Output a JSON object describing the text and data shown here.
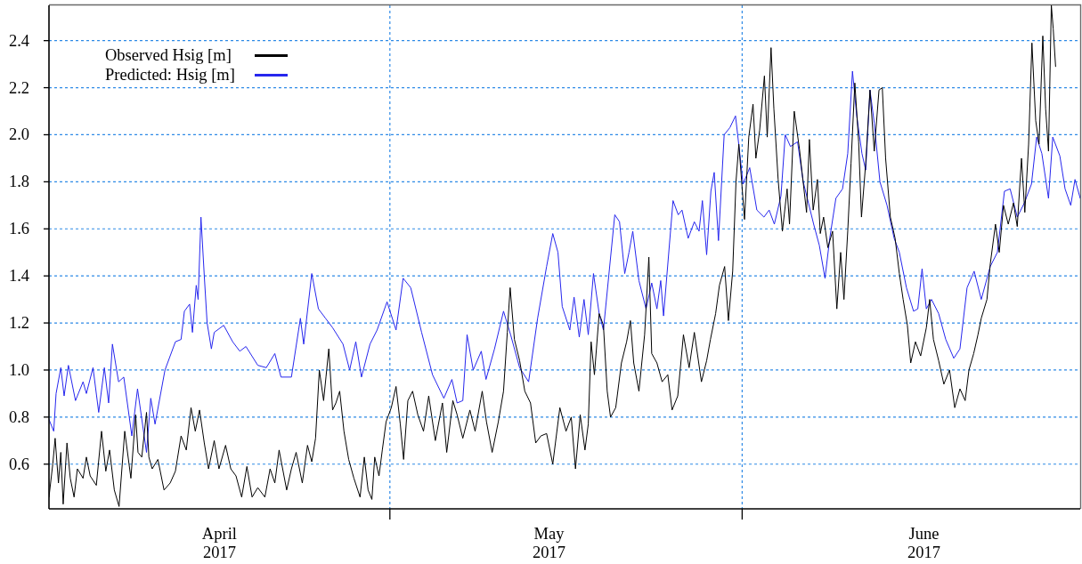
{
  "chart_data": {
    "type": "line",
    "series": [
      {
        "name": "Observed Hsig [m]",
        "color": "#000000",
        "x": [
          "2017-04-01T00:00",
          "2017-04-01T08:00",
          "2017-04-01T13:00",
          "2017-04-01T20:00",
          "2017-04-02T01:00",
          "2017-04-02T06:00",
          "2017-04-02T14:00",
          "2017-04-02T21:00",
          "2017-04-03T05:00",
          "2017-04-03T12:00",
          "2017-04-04T00:00",
          "2017-04-04T07:00",
          "2017-04-04T15:00",
          "2017-04-05T04:00",
          "2017-04-05T15:00",
          "2017-04-06T00:00",
          "2017-04-06T08:00",
          "2017-04-06T18:00",
          "2017-04-07T04:00",
          "2017-04-07T16:00",
          "2017-04-08T05:00",
          "2017-04-08T15:00",
          "2017-04-08T20:00",
          "2017-04-09T04:00",
          "2017-04-09T14:00",
          "2017-04-09T19:00",
          "2017-04-10T02:00",
          "2017-04-10T14:00",
          "2017-04-11T03:00",
          "2017-04-11T16:00",
          "2017-04-12T03:00",
          "2017-04-12T15:00",
          "2017-04-13T02:00",
          "2017-04-13T12:00",
          "2017-04-13T21:00",
          "2017-04-14T06:00",
          "2017-04-14T16:00",
          "2017-04-15T01:00",
          "2017-04-15T13:00",
          "2017-04-15T23:00",
          "2017-04-16T13:00",
          "2017-04-17T00:00",
          "2017-04-17T11:00",
          "2017-04-17T23:00",
          "2017-04-18T10:00",
          "2017-04-18T21:00",
          "2017-04-19T09:00",
          "2017-04-20T00:00",
          "2017-04-20T11:00",
          "2017-04-20T21:00",
          "2017-04-21T06:00",
          "2017-04-21T22:00",
          "2017-04-22T08:00",
          "2017-04-22T18:00",
          "2017-04-23T07:00",
          "2017-04-23T18:00",
          "2017-04-24T03:00",
          "2017-04-24T11:00",
          "2017-04-24T19:00",
          "2017-04-25T04:00",
          "2017-04-25T09:00",
          "2017-04-25T15:00",
          "2017-04-25T23:00",
          "2017-04-26T06:00",
          "2017-04-26T14:00",
          "2017-04-26T23:00",
          "2017-04-27T09:00",
          "2017-04-27T20:00",
          "2017-04-28T09:00",
          "2017-04-28T18:00",
          "2017-04-29T02:00",
          "2017-04-29T10:00",
          "2017-04-29T16:00",
          "2017-04-30T01:00",
          "2017-04-30T08:00",
          "2017-04-30T16:00",
          "2017-05-01T03:00",
          "2017-05-01T13:00",
          "2017-05-01T22:00",
          "2017-05-02T05:00",
          "2017-05-02T14:00",
          "2017-05-03T00:00",
          "2017-05-03T11:00",
          "2017-05-03T23:00",
          "2017-05-04T10:00",
          "2017-05-05T00:00",
          "2017-05-05T15:00",
          "2017-05-06T00:00",
          "2017-05-06T13:00",
          "2017-05-06T22:00",
          "2017-05-07T10:00",
          "2017-05-08T01:00",
          "2017-05-08T12:00",
          "2017-05-09T03:00",
          "2017-05-09T12:00",
          "2017-05-10T00:00",
          "2017-05-10T13:00",
          "2017-05-11T00:00",
          "2017-05-11T08:00",
          "2017-05-11T14:00",
          "2017-05-11T23:00",
          "2017-05-12T10:00",
          "2017-05-12T21:00",
          "2017-05-13T09:00",
          "2017-05-13T20:00",
          "2017-05-14T07:00",
          "2017-05-14T19:00",
          "2017-05-15T08:00",
          "2017-05-15T23:00",
          "2017-05-16T12:00",
          "2017-05-16T23:00",
          "2017-05-17T08:00",
          "2017-05-17T18:00",
          "2017-05-18T04:00",
          "2017-05-18T11:00",
          "2017-05-18T17:00",
          "2017-05-19T00:00",
          "2017-05-19T10:00",
          "2017-05-19T19:00",
          "2017-05-20T03:00",
          "2017-05-20T10:00",
          "2017-05-20T21:00",
          "2017-05-21T09:00",
          "2017-05-21T20:00",
          "2017-05-22T04:00",
          "2017-05-22T11:00",
          "2017-05-22T22:00",
          "2017-05-23T10:00",
          "2017-05-23T19:00",
          "2017-05-24T01:00",
          "2017-05-24T12:00",
          "2017-05-24T23:00",
          "2017-05-25T11:00",
          "2017-05-25T20:00",
          "2017-05-26T08:00",
          "2017-05-26T20:00",
          "2017-05-27T08:00",
          "2017-05-27T19:00",
          "2017-05-28T10:00",
          "2017-05-28T21:00",
          "2017-05-29T05:00",
          "2017-05-29T16:00",
          "2017-05-30T00:00",
          "2017-05-30T11:00",
          "2017-05-30T19:00",
          "2017-05-31T04:00",
          "2017-05-31T11:00",
          "2017-05-31T17:00",
          "2017-06-01T05:00",
          "2017-06-01T14:00",
          "2017-06-01T23:00",
          "2017-06-02T05:00",
          "2017-06-02T13:00",
          "2017-06-02T23:00",
          "2017-06-03T05:00",
          "2017-06-03T13:00",
          "2017-06-03T19:00",
          "2017-06-04T04:00",
          "2017-06-04T13:00",
          "2017-06-04T23:00",
          "2017-06-05T04:00",
          "2017-06-05T14:00",
          "2017-06-06T01:00",
          "2017-06-06T16:00",
          "2017-06-06T22:00",
          "2017-06-07T06:00",
          "2017-06-07T15:00",
          "2017-06-07T21:00",
          "2017-06-08T04:00",
          "2017-06-08T13:00",
          "2017-06-08T23:00",
          "2017-06-09T08:00",
          "2017-06-09T16:00",
          "2017-06-09T23:00",
          "2017-06-10T07:00",
          "2017-06-10T14:00",
          "2017-06-10T22:00",
          "2017-06-11T06:00",
          "2017-06-11T12:00",
          "2017-06-11T21:00",
          "2017-06-12T06:00",
          "2017-06-12T15:00",
          "2017-06-13T01:00",
          "2017-06-13T08:00",
          "2017-06-13T15:00",
          "2017-06-14T01:00",
          "2017-06-14T11:00",
          "2017-06-14T20:00",
          "2017-06-15T04:00",
          "2017-06-15T13:00",
          "2017-06-15T20:00",
          "2017-06-16T06:00",
          "2017-06-16T17:00",
          "2017-06-17T05:00",
          "2017-06-17T12:00",
          "2017-06-17T20:00",
          "2017-06-18T07:00",
          "2017-06-18T18:00",
          "2017-06-19T06:00",
          "2017-06-19T17:00",
          "2017-06-20T04:00",
          "2017-06-20T15:00",
          "2017-06-20T23:00",
          "2017-06-21T09:00",
          "2017-06-21T18:00",
          "2017-06-22T01:00",
          "2017-06-22T13:00",
          "2017-06-22T20:00",
          "2017-06-23T07:00",
          "2017-06-23T15:00",
          "2017-06-24T00:00",
          "2017-06-24T10:00",
          "2017-06-24T21:00",
          "2017-06-25T05:00",
          "2017-06-25T14:00",
          "2017-06-25T21:00",
          "2017-06-26T05:00",
          "2017-06-26T12:00",
          "2017-06-26T20:00",
          "2017-06-27T03:00",
          "2017-06-27T11:00",
          "2017-06-27T17:00",
          "2017-06-27T23:00",
          "2017-06-28T05:00",
          "2017-06-28T09:00",
          "2017-06-28T14:00"
        ],
        "values": [
          0.46,
          0.6,
          0.71,
          0.52,
          0.65,
          0.43,
          0.69,
          0.54,
          0.46,
          0.58,
          0.54,
          0.63,
          0.55,
          0.51,
          0.74,
          0.57,
          0.66,
          0.49,
          0.42,
          0.74,
          0.54,
          0.81,
          0.65,
          0.63,
          0.82,
          0.63,
          0.58,
          0.62,
          0.49,
          0.52,
          0.57,
          0.72,
          0.66,
          0.84,
          0.74,
          0.83,
          0.69,
          0.58,
          0.7,
          0.58,
          0.68,
          0.58,
          0.55,
          0.46,
          0.59,
          0.46,
          0.5,
          0.46,
          0.58,
          0.52,
          0.66,
          0.49,
          0.58,
          0.65,
          0.52,
          0.68,
          0.61,
          0.71,
          1.0,
          0.87,
          0.97,
          1.09,
          0.83,
          0.86,
          0.91,
          0.74,
          0.62,
          0.54,
          0.46,
          0.63,
          0.49,
          0.45,
          0.63,
          0.55,
          0.66,
          0.78,
          0.84,
          0.93,
          0.77,
          0.62,
          0.87,
          0.91,
          0.81,
          0.74,
          0.89,
          0.7,
          0.86,
          0.65,
          0.87,
          0.81,
          0.71,
          0.83,
          0.74,
          0.91,
          0.78,
          0.65,
          0.78,
          0.91,
          1.16,
          1.35,
          1.13,
          1.04,
          0.91,
          0.86,
          0.69,
          0.72,
          0.73,
          0.6,
          0.84,
          0.74,
          0.8,
          0.58,
          0.81,
          0.66,
          0.77,
          1.12,
          0.98,
          1.24,
          1.19,
          0.91,
          0.8,
          0.84,
          1.03,
          1.12,
          1.21,
          1.03,
          0.91,
          1.15,
          1.48,
          1.07,
          1.03,
          0.95,
          0.98,
          0.83,
          0.89,
          1.15,
          1.01,
          1.16,
          0.95,
          1.04,
          1.13,
          1.24,
          1.36,
          1.44,
          1.21,
          1.42,
          1.8,
          1.96,
          1.64,
          1.99,
          2.13,
          1.9,
          2.02,
          2.25,
          1.99,
          2.37,
          2.11,
          1.81,
          1.59,
          1.77,
          1.62,
          2.1,
          1.94,
          1.67,
          1.98,
          1.68,
          1.81,
          1.58,
          1.65,
          1.52,
          1.59,
          1.26,
          1.5,
          1.3,
          1.59,
          1.88,
          2.22,
          1.97,
          1.65,
          1.88,
          2.19,
          1.93,
          2.19,
          2.2,
          1.9,
          1.65,
          1.56,
          1.41,
          1.3,
          1.19,
          1.03,
          1.12,
          1.06,
          1.18,
          1.3,
          1.13,
          1.04,
          0.94,
          1.0,
          0.84,
          0.92,
          0.87,
          1.0,
          1.07,
          1.15,
          1.22,
          1.3,
          1.45,
          1.62,
          1.5,
          1.7,
          1.62,
          1.71,
          1.61,
          1.9,
          1.67,
          1.96,
          2.39,
          2.06,
          1.96,
          2.42,
          2.11,
          1.93,
          2.55,
          2.45,
          2.29
        ]
      },
      {
        "name": "Predicted: Hsig [m]",
        "color": "#2626ee",
        "x": [
          "2017-04-01T00:00",
          "2017-04-01T10:00",
          "2017-04-01T15:00",
          "2017-04-02T01:00",
          "2017-04-02T08:00",
          "2017-04-02T17:00",
          "2017-04-03T08:00",
          "2017-04-04T00:00",
          "2017-04-04T07:00",
          "2017-04-04T21:00",
          "2017-04-05T09:00",
          "2017-04-05T21:00",
          "2017-04-06T06:00",
          "2017-04-06T14:00",
          "2017-04-07T03:00",
          "2017-04-07T14:00",
          "2017-04-08T07:00",
          "2017-04-08T19:00",
          "2017-04-09T14:00",
          "2017-04-09T23:00",
          "2017-04-10T08:00",
          "2017-04-11T05:00",
          "2017-04-12T03:00",
          "2017-04-12T15:00",
          "2017-04-12T22:00",
          "2017-04-13T09:00",
          "2017-04-13T15:00",
          "2017-04-13T23:00",
          "2017-04-14T03:00",
          "2017-04-14T09:00",
          "2017-04-14T16:00",
          "2017-04-14T22:00",
          "2017-04-15T07:00",
          "2017-04-15T13:00",
          "2017-04-16T09:00",
          "2017-04-17T04:00",
          "2017-04-17T19:00",
          "2017-04-18T08:00",
          "2017-04-19T09:00",
          "2017-04-20T03:00",
          "2017-04-20T21:00",
          "2017-04-21T10:00",
          "2017-04-22T08:00",
          "2017-04-23T03:00",
          "2017-04-23T10:00",
          "2017-04-24T03:00",
          "2017-04-24T17:00",
          "2017-04-25T08:00",
          "2017-04-25T23:00",
          "2017-04-26T21:00",
          "2017-04-27T11:00",
          "2017-04-28T00:00",
          "2017-04-28T12:00",
          "2017-04-29T06:00",
          "2017-04-29T21:00",
          "2017-04-30T18:00",
          "2017-05-01T13:00",
          "2017-05-02T04:00",
          "2017-05-02T20:00",
          "2017-05-03T19:00",
          "2017-05-04T18:00",
          "2017-05-05T18:00",
          "2017-05-06T11:00",
          "2017-05-06T22:00",
          "2017-05-07T10:00",
          "2017-05-07T19:00",
          "2017-05-08T08:00",
          "2017-05-09T01:00",
          "2017-05-09T11:00",
          "2017-05-10T05:00",
          "2017-05-11T00:00",
          "2017-05-11T15:00",
          "2017-05-12T10:00",
          "2017-05-13T05:00",
          "2017-05-14T00:00",
          "2017-05-14T19:00",
          "2017-05-15T08:00",
          "2017-05-15T19:00",
          "2017-05-16T04:00",
          "2017-05-16T20:00",
          "2017-05-17T05:00",
          "2017-05-17T16:00",
          "2017-05-18T02:00",
          "2017-05-18T11:00",
          "2017-05-18T22:00",
          "2017-05-19T10:00",
          "2017-05-19T19:00",
          "2017-05-20T19:00",
          "2017-05-21T05:00",
          "2017-05-21T16:00",
          "2017-05-22T01:00",
          "2017-05-22T09:00",
          "2017-05-22T22:00",
          "2017-05-23T13:00",
          "2017-05-24T01:00",
          "2017-05-24T12:00",
          "2017-05-24T20:00",
          "2017-05-25T02:00",
          "2017-05-25T22:00",
          "2017-05-26T09:00",
          "2017-05-26T17:00",
          "2017-05-27T06:00",
          "2017-05-27T19:00",
          "2017-05-28T05:00",
          "2017-05-28T12:00",
          "2017-05-28T21:00",
          "2017-05-29T06:00",
          "2017-05-29T13:00",
          "2017-05-29T22:00",
          "2017-05-30T10:00",
          "2017-05-30T22:00",
          "2017-05-31T10:00",
          "2017-05-31T19:00",
          "2017-06-01T02:00",
          "2017-06-01T16:00",
          "2017-06-02T07:00",
          "2017-06-02T22:00",
          "2017-06-03T09:00",
          "2017-06-03T20:00",
          "2017-06-04T10:00",
          "2017-06-04T19:00",
          "2017-06-05T06:00",
          "2017-06-05T21:00",
          "2017-06-06T09:00",
          "2017-06-06T20:00",
          "2017-06-07T07:00",
          "2017-06-07T19:00",
          "2017-06-08T07:00",
          "2017-06-08T17:00",
          "2017-06-09T06:00",
          "2017-06-09T20:00",
          "2017-06-10T07:00",
          "2017-06-10T17:00",
          "2017-06-11T02:00",
          "2017-06-11T13:00",
          "2017-06-11T21:00",
          "2017-06-12T06:00",
          "2017-06-12T15:00",
          "2017-06-13T03:00",
          "2017-06-13T18:00",
          "2017-06-14T09:00",
          "2017-06-14T20:00",
          "2017-06-15T11:00",
          "2017-06-16T02:00",
          "2017-06-16T11:00",
          "2017-06-16T20:00",
          "2017-06-17T05:00",
          "2017-06-17T16:00",
          "2017-06-18T07:00",
          "2017-06-18T22:00",
          "2017-06-19T15:00",
          "2017-06-20T04:00",
          "2017-06-20T19:00",
          "2017-06-21T10:00",
          "2017-06-22T01:00",
          "2017-06-22T20:00",
          "2017-06-23T11:00",
          "2017-06-24T02:00",
          "2017-06-24T14:00",
          "2017-06-25T05:00",
          "2017-06-25T20:00",
          "2017-06-26T11:00",
          "2017-06-26T22:00",
          "2017-06-27T09:00",
          "2017-06-27T23:00",
          "2017-06-28T08:00",
          "2017-06-28T23:00",
          "2017-06-29T10:00",
          "2017-06-29T22:00",
          "2017-06-30T07:00",
          "2017-06-30T18:00"
        ],
        "values": [
          0.79,
          0.74,
          0.9,
          1.01,
          0.89,
          1.02,
          0.87,
          0.95,
          0.9,
          1.01,
          0.82,
          1.01,
          0.86,
          1.11,
          0.95,
          0.97,
          0.72,
          0.92,
          0.65,
          0.88,
          0.77,
          1.0,
          1.12,
          1.13,
          1.25,
          1.28,
          1.16,
          1.36,
          1.3,
          1.65,
          1.4,
          1.2,
          1.09,
          1.16,
          1.19,
          1.12,
          1.08,
          1.1,
          1.02,
          1.01,
          1.07,
          0.97,
          0.97,
          1.22,
          1.11,
          1.41,
          1.26,
          1.22,
          1.18,
          1.11,
          1.0,
          1.12,
          0.97,
          1.11,
          1.17,
          1.29,
          1.17,
          1.39,
          1.35,
          1.16,
          0.98,
          0.88,
          0.96,
          0.86,
          0.87,
          1.15,
          1.0,
          1.08,
          0.96,
          1.09,
          1.25,
          1.15,
          1.01,
          0.95,
          1.22,
          1.44,
          1.58,
          1.5,
          1.27,
          1.17,
          1.31,
          1.14,
          1.3,
          1.15,
          1.41,
          1.24,
          1.17,
          1.66,
          1.63,
          1.41,
          1.5,
          1.59,
          1.38,
          1.26,
          1.37,
          1.26,
          1.38,
          1.23,
          1.72,
          1.66,
          1.68,
          1.56,
          1.63,
          1.59,
          1.72,
          1.49,
          1.76,
          1.84,
          1.55,
          2.0,
          2.03,
          2.08,
          1.92,
          1.79,
          1.86,
          1.68,
          1.65,
          1.68,
          1.62,
          1.74,
          2.0,
          1.95,
          1.97,
          1.8,
          1.71,
          1.62,
          1.53,
          1.39,
          1.56,
          1.73,
          1.77,
          1.92,
          2.27,
          2.08,
          1.92,
          1.85,
          2.19,
          2.05,
          1.8,
          1.7,
          1.56,
          1.5,
          1.35,
          1.25,
          1.26,
          1.43,
          1.26,
          1.3,
          1.24,
          1.13,
          1.05,
          1.09,
          1.35,
          1.42,
          1.3,
          1.44,
          1.5,
          1.76,
          1.77,
          1.65,
          1.71,
          1.79,
          1.99,
          1.92,
          1.73,
          1.99,
          1.91,
          1.77,
          1.7,
          1.81,
          1.73
        ]
      }
    ],
    "xlim": [
      "2017-04-01T00:00",
      "2017-06-30T18:00"
    ],
    "xticks": [
      {
        "value": "2017-05-01",
        "label": null
      },
      {
        "value": "2017-06-01",
        "label": null
      },
      {
        "value": "2017-04-16",
        "label": "April\n2017"
      },
      {
        "value": "2017-05-15",
        "label": "May\n2017"
      },
      {
        "value": "2017-06-17",
        "label": "June\n2017"
      }
    ],
    "ylim": [
      0.41,
      2.55
    ],
    "yticks": [
      0.6,
      0.8,
      {
        "value": 1,
        "label": "1.0"
      },
      1.2,
      1.4,
      1.6,
      1.8,
      {
        "value": 2,
        "label": "2.0"
      },
      2.2,
      2.4
    ],
    "grid": true,
    "legend": "top left"
  }
}
